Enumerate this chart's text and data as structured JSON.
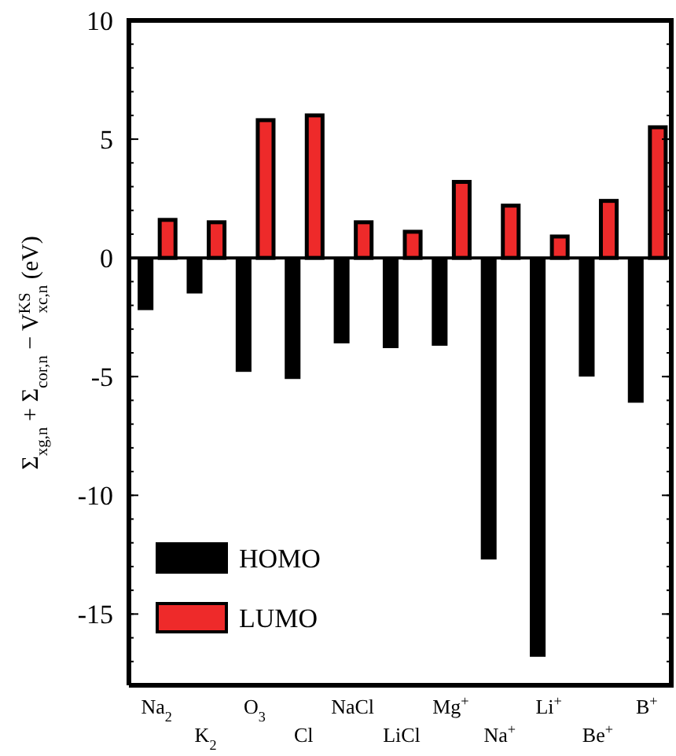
{
  "chart_data": {
    "type": "bar",
    "ylabel": "Σ$_{xg,n}$ + Σ$_{cor,n}$ − V$^{KS}$$_{xc,n}$ (eV)",
    "categories": [
      "Na$_{2}$",
      "K$_{2}$",
      "O$_{3}$",
      "Cl",
      "NaCl",
      "LiCl",
      "Mg$^{+}$",
      "Na$^{+}$",
      "Li$^{+}$",
      "Be$^{+}$",
      "B$^{+}$"
    ],
    "series": [
      {
        "name": "HOMO",
        "color": "#000000",
        "values": [
          -2.2,
          -1.5,
          -4.8,
          -5.1,
          -3.6,
          -3.8,
          -3.7,
          -12.7,
          -16.8,
          -5.0,
          -6.1
        ]
      },
      {
        "name": "LUMO",
        "color": "#ee2a2a",
        "values": [
          1.6,
          1.5,
          5.8,
          6.0,
          1.5,
          1.1,
          3.2,
          2.2,
          0.9,
          2.4,
          5.5
        ]
      }
    ],
    "ylim": [
      -18,
      10
    ],
    "yticks": [
      -15,
      -10,
      -5,
      0,
      5,
      10
    ],
    "legend": "bottom left"
  }
}
